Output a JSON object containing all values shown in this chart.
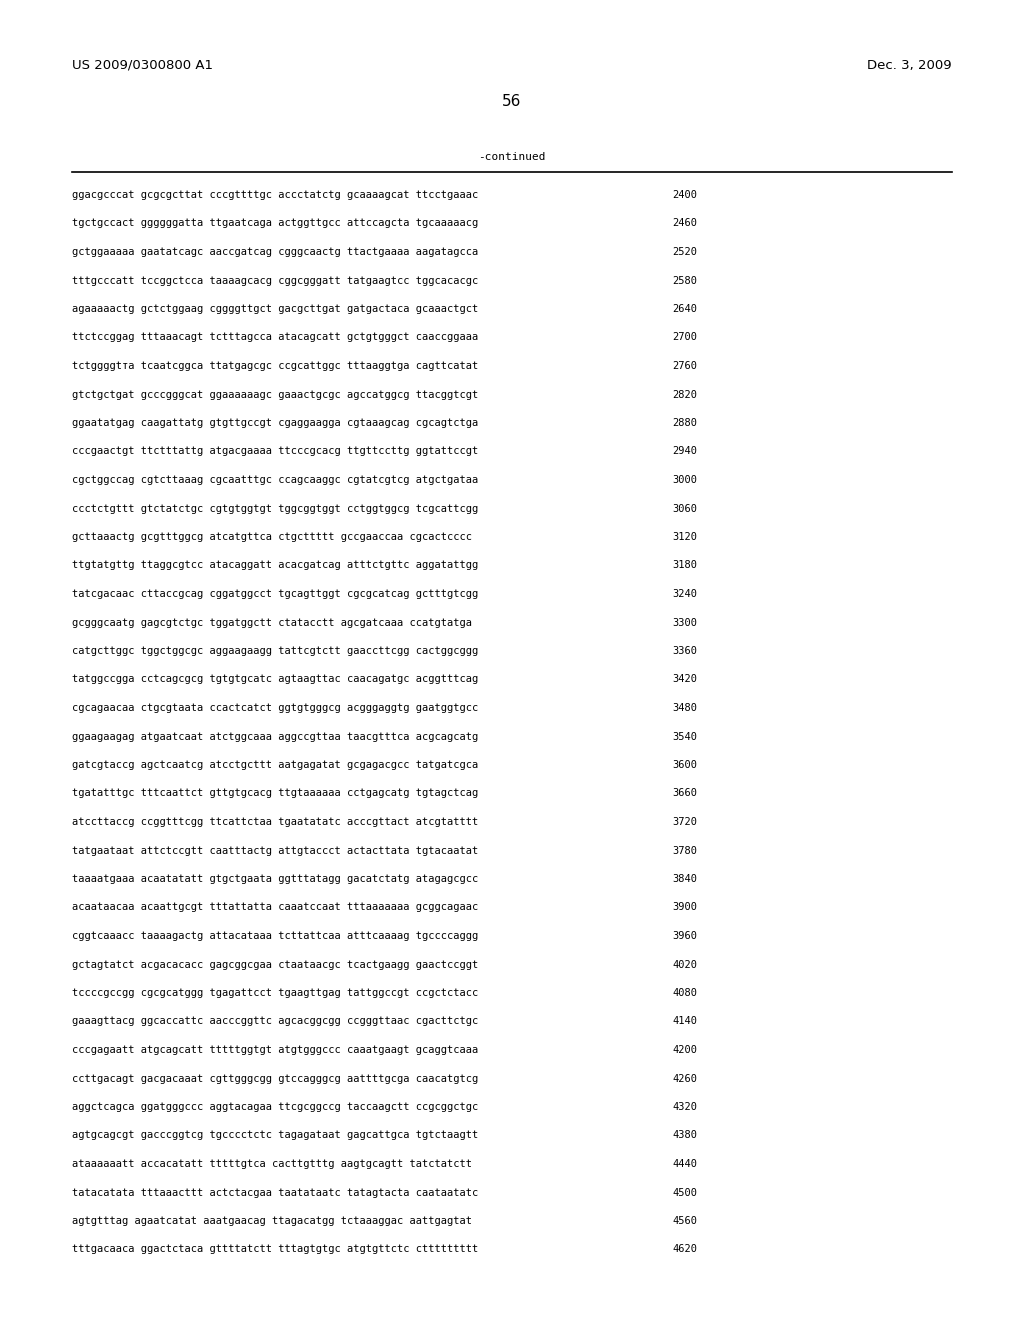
{
  "patent_number": "US 2009/0300800 A1",
  "date": "Dec. 3, 2009",
  "page_number": "56",
  "continued_label": "-continued",
  "background_color": "#ffffff",
  "text_color": "#000000",
  "font_size_header": 9.5,
  "font_size_body": 7.5,
  "font_size_page": 11,
  "sequences": [
    [
      "ggacgcccat gcgcgcttat cccgttttgc accctatctg gcaaaagcat ttcctgaaac",
      "2400"
    ],
    [
      "tgctgccact ggggggatta ttgaatcaga actggttgcc attccagcta tgcaaaaacg",
      "2460"
    ],
    [
      "gctggaaaaa gaatatcagc aaccgatcag cgggcaactg ttactgaaaa aagatagcca",
      "2520"
    ],
    [
      "tttgcccatt tccggctcca taaaagcacg cggcgggatt tatgaagtcc tggcacacgc",
      "2580"
    ],
    [
      "agaaaaactg gctctggaag cggggttgct gacgcttgat gatgactaca gcaaactgct",
      "2640"
    ],
    [
      "ttctccggag tttaaacagt tctttagcca atacagcatt gctgtgggct caaccggaaa",
      "2700"
    ],
    [
      "tctggggtта tcaatcggca ttatgagcgc ccgcattggc tttaaggtga cagttcatat",
      "2760"
    ],
    [
      "gtctgctgat gcccgggcat ggaaaaaagc gaaactgcgc agccatggcg ttacggtcgt",
      "2820"
    ],
    [
      "ggaatatgag caagattatg gtgttgccgt cgaggaagga cgtaaagcag cgcagtctga",
      "2880"
    ],
    [
      "cccgaactgt ttctttattg atgacgaaaa ttcccgcacg ttgttccttg ggtattccgt",
      "2940"
    ],
    [
      "cgctggccag cgtcttaaag cgcaatttgc ccagcaaggc cgtatcgtcg atgctgataa",
      "3000"
    ],
    [
      "ccctctgttt gtctatctgc cgtgtggtgt tggcggtggt cctggtggcg tcgcattcgg",
      "3060"
    ],
    [
      "gcttaaactg gcgtttggcg atcatgttca ctgcttttt gccgaaccaa cgcactcccc",
      "3120"
    ],
    [
      "ttgtatgttg ttaggcgtcc atacaggatt acacgatcag atttctgttc aggatattgg",
      "3180"
    ],
    [
      "tatcgacaac cttaccgcag cggatggcct tgcagttggt cgcgcatcag gctttgtcgg",
      "3240"
    ],
    [
      "gcgggcaatg gagcgtctgc tggatggctt ctatacctt agcgatcaaa ccatgtatga",
      "3300"
    ],
    [
      "catgcttggc tggctggcgc aggaagaagg tattcgtctt gaaccttcgg cactggcggg",
      "3360"
    ],
    [
      "tatggccgga cctcagcgcg tgtgtgcatc agtaagttac caacagatgc acggtttcag",
      "3420"
    ],
    [
      "cgcagaacaa ctgcgtaata ccactcatct ggtgtgggcg acgggaggtg gaatggtgcc",
      "3480"
    ],
    [
      "ggaagaagag atgaatcaat atctggcaaa aggccgttaa taacgtttca acgcagcatg",
      "3540"
    ],
    [
      "gatcgtaccg agctcaatcg atcctgcttt aatgagatat gcgagacgcc tatgatcgca",
      "3600"
    ],
    [
      "tgatatttgc tttcaattct gttgtgcacg ttgtaaaaaa cctgagcatg tgtagctcag",
      "3660"
    ],
    [
      "atccttaccg ccggtttcgg ttcattctaa tgaatatatc acccgttact atcgtatttt",
      "3720"
    ],
    [
      "tatgaataat attctccgtt caatttactg attgtaccct actacttata tgtacaatat",
      "3780"
    ],
    [
      "taaaatgaaa acaatatatt gtgctgaata ggtttatagg gacatctatg atagagcgcc",
      "3840"
    ],
    [
      "acaataacaa acaattgcgt tttattatta caaatccaat tttaaaaaaa gcggcagaac",
      "3900"
    ],
    [
      "cggtcaaacc taaaagactg attacataaa tcttattcaa atttcaaaag tgccccaggg",
      "3960"
    ],
    [
      "gctagtatct acgacacacc gagcggcgaa ctaataacgc tcactgaagg gaactccggt",
      "4020"
    ],
    [
      "tccccgccgg cgcgcatggg tgagattcct tgaagttgag tattggccgt ccgctctacc",
      "4080"
    ],
    [
      "gaaagttacg ggcaccattc aacccggttc agcacggcgg ccgggttaac cgacttctgc",
      "4140"
    ],
    [
      "cccgagaatt atgcagcatt tttttggtgt atgtgggccc caaatgaagt gcaggtcaaa",
      "4200"
    ],
    [
      "ccttgacagt gacgacaaat cgttgggcgg gtccagggcg aattttgcga caacatgtcg",
      "4260"
    ],
    [
      "aggctcagca ggatgggccc aggtacagaa ttcgcggccg taccaagctt ccgcggctgc",
      "4320"
    ],
    [
      "agtgcagcgt gacccggtcg tgcccctctc tagagataat gagcattgca tgtctaagtt",
      "4380"
    ],
    [
      "ataaaaaatt accacatatt tttttgtca cacttgtttg aagtgcagtt tatctatctt",
      "4440"
    ],
    [
      "tatacatata tttaaacttt actctacgaa taatataatc tatagtacta caataatatc",
      "4500"
    ],
    [
      "agtgtttag agaatcatat aaatgaacag ttagacatgg tctaaaggac aattgagtat",
      "4560"
    ],
    [
      "tttgacaaca ggactctaca gttttatctt tttagtgtgc atgtgttctc cttttttttt",
      "4620"
    ]
  ]
}
